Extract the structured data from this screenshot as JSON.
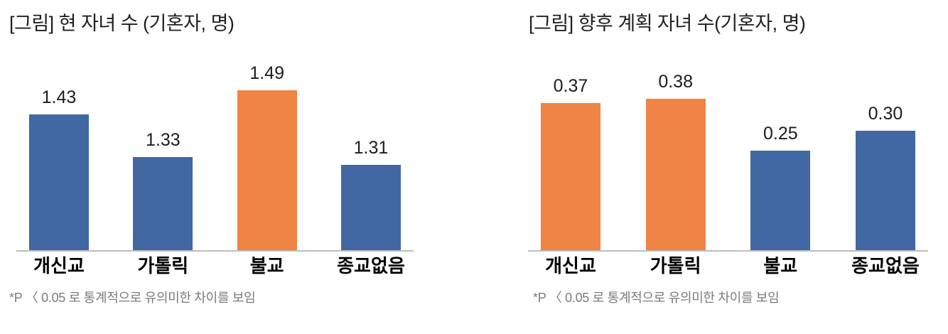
{
  "colors": {
    "bar_blue": "#4168A3",
    "bar_orange": "#EF8445",
    "axis_line": "#BDBDBD",
    "title_text": "#1F1F1F",
    "category_text": "#000000",
    "footnote_text": "#7B7B7B",
    "background": "#FFFFFF"
  },
  "chart_data": [
    {
      "type": "bar",
      "title": "[그림] 현 자녀 수 (기혼자, 명)",
      "categories": [
        "개신교",
        "가톨릭",
        "불교",
        "종교없음"
      ],
      "values": [
        1.43,
        1.33,
        1.49,
        1.31
      ],
      "labels": [
        "1.43",
        "1.33",
        "1.49",
        "1.31"
      ],
      "bar_colors": [
        "#4168A3",
        "#4168A3",
        "#EF8445",
        "#4168A3"
      ],
      "ylim": [
        1.11,
        1.55
      ],
      "xlabel": "",
      "ylabel": "",
      "grid": false,
      "legend": "none",
      "value_labels": "above-bars",
      "footnote": "*P 〈 0.05 로 통계적으로 유의미한 차이를 보임"
    },
    {
      "type": "bar",
      "title": "[그림] 향후 계획 자녀 수(기혼자, 명)",
      "categories": [
        "개신교",
        "가톨릭",
        "불교",
        "종교없음"
      ],
      "values": [
        0.37,
        0.38,
        0.25,
        0.3
      ],
      "labels": [
        "0.37",
        "0.38",
        "0.25",
        "0.30"
      ],
      "bar_colors": [
        "#EF8445",
        "#EF8445",
        "#4168A3",
        "#4168A3"
      ],
      "ylim": [
        0,
        0.47
      ],
      "xlabel": "",
      "ylabel": "",
      "grid": false,
      "legend": "none",
      "value_labels": "above-bars",
      "footnote": "*P 〈 0.05 로 통계적으로 유의미한 차이를 보임"
    }
  ]
}
